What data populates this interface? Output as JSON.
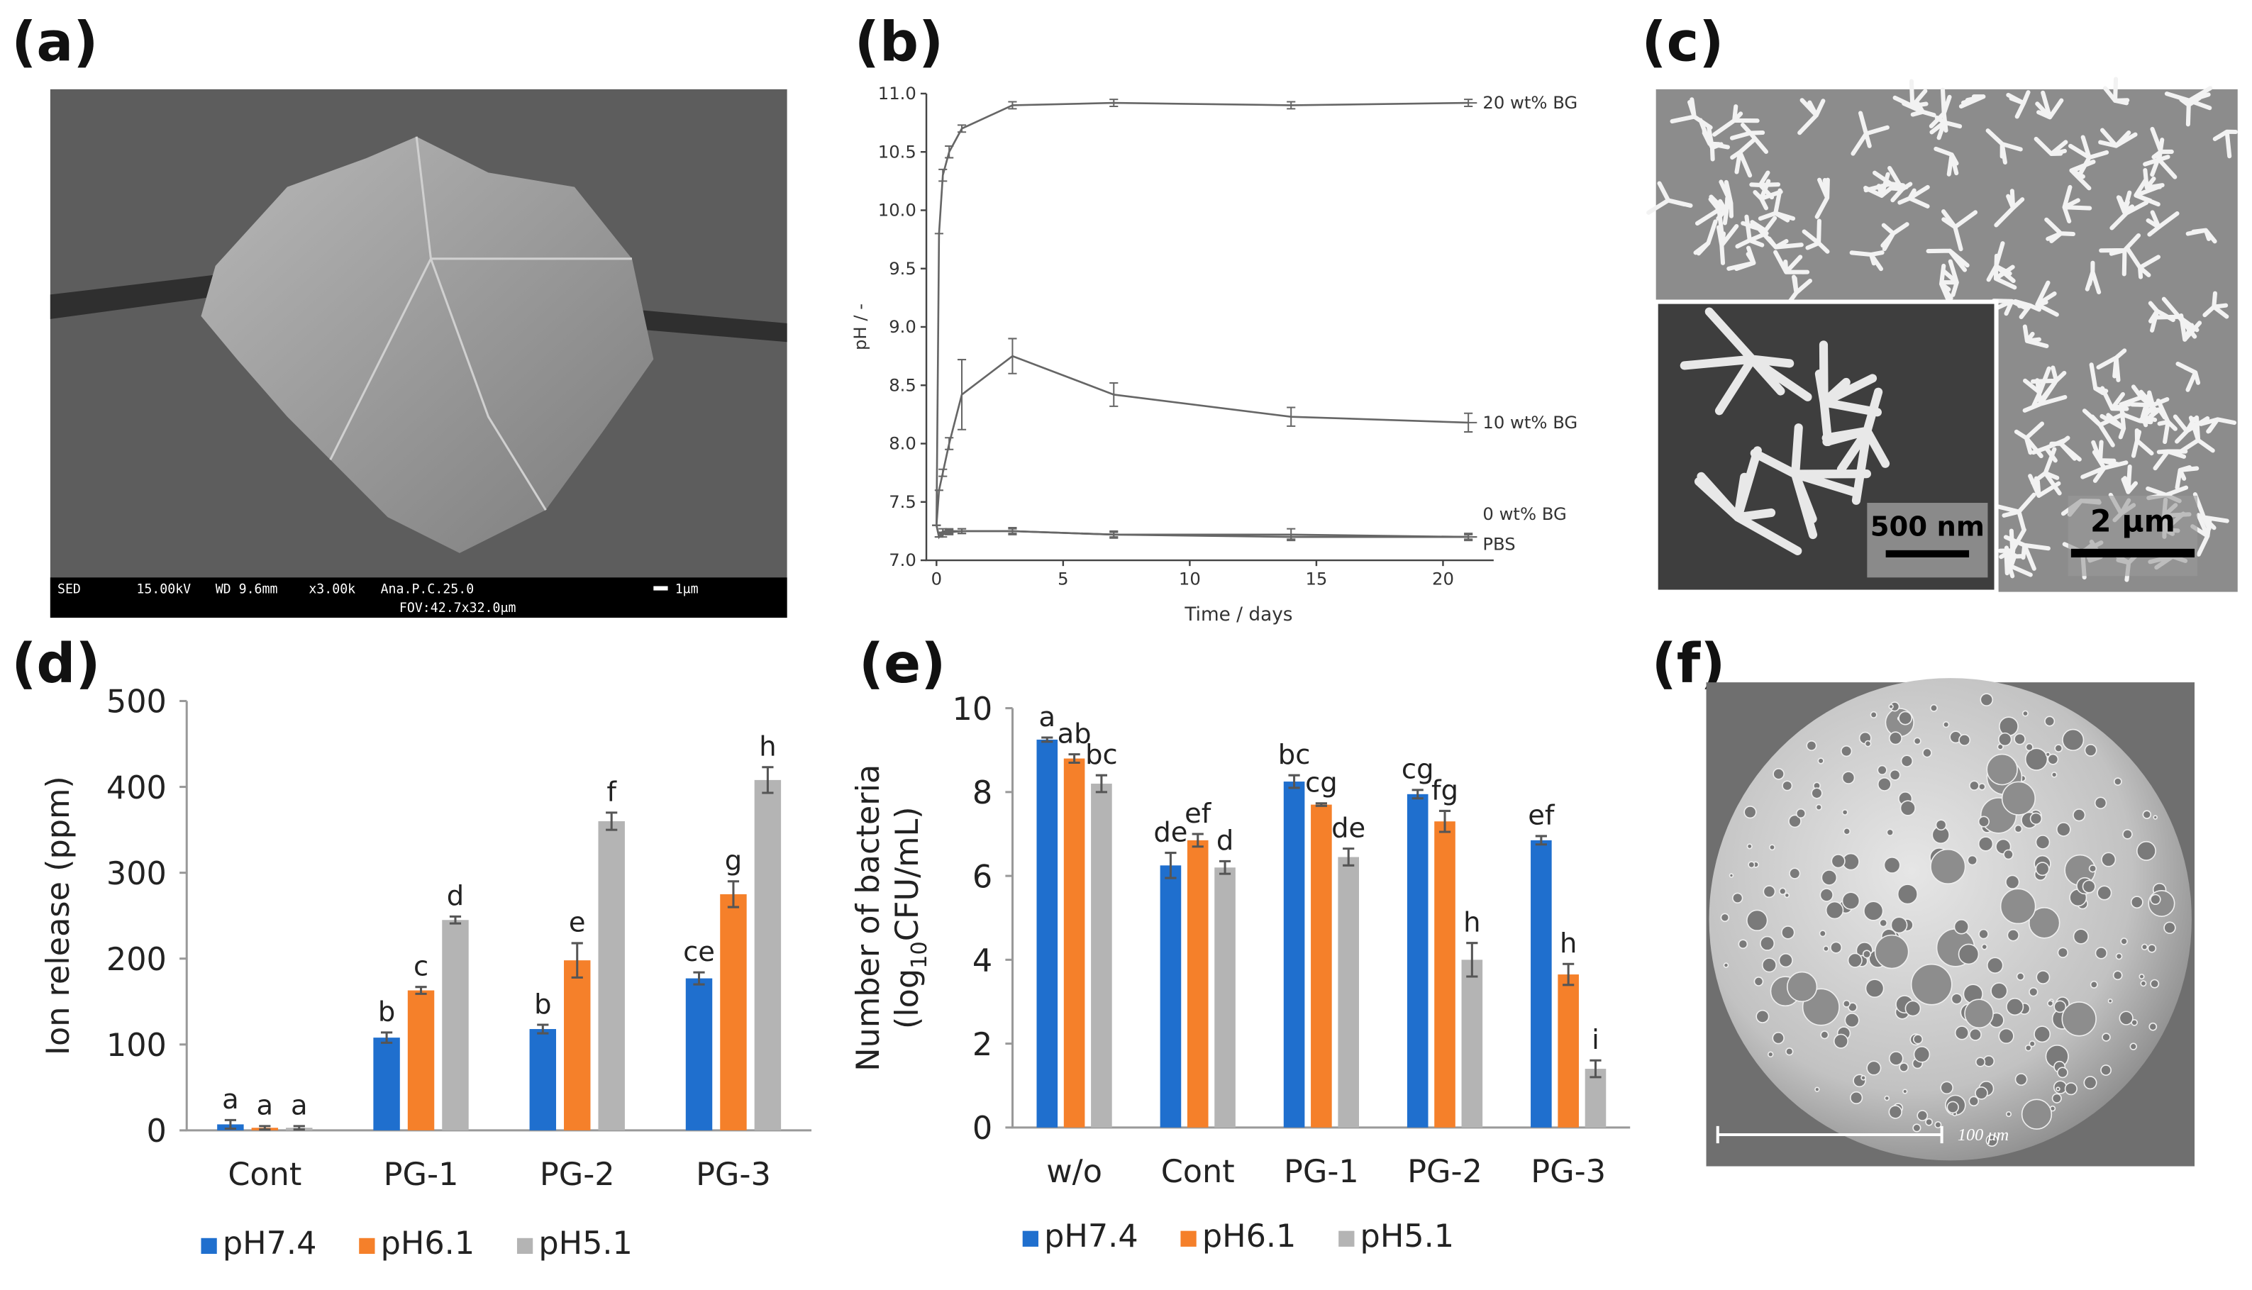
{
  "images": [
    {
      "panel_label": "(a)",
      "info_bar": [
        "SED",
        "15.00kV",
        "WD 9.6mm",
        "x3.00k",
        "Ana.P.C.25.0",
        "FOV:42.7x32.0μm"
      ],
      "scale_bar": "1μm"
    },
    {
      "panel_label": "(c)",
      "inset_scale_bar": "500 nm",
      "scale_bar": "2 μm"
    },
    {
      "panel_label": "(f)",
      "scale_bar": "100 μm"
    }
  ],
  "chart_data": [
    {
      "type": "line",
      "panel_label": "(b)",
      "x_label": "Time / days",
      "y_label": "pH / -",
      "x": [
        0,
        0.1,
        0.25,
        0.5,
        1,
        3,
        7,
        14,
        21
      ],
      "xlim": [
        -0.4,
        22
      ],
      "xticks": [
        0,
        5,
        10,
        15,
        20
      ],
      "ylim": [
        7.0,
        11.0
      ],
      "yticks": [
        {
          "value": 7.0,
          "label": "7.0"
        },
        {
          "value": 7.5,
          "label": "7.5"
        },
        {
          "value": 8.0,
          "label": "8.0"
        },
        {
          "value": 8.5,
          "label": "8.5"
        },
        {
          "value": 9.0,
          "label": "9.0"
        },
        {
          "value": 9.5,
          "label": "9.5"
        },
        {
          "value": 10.0,
          "label": "10.0"
        },
        {
          "value": 10.5,
          "label": "10.5"
        },
        {
          "value": 11.0,
          "label": "11.0"
        }
      ],
      "series": [
        {
          "name": "20 wt% BG",
          "color": "#666666",
          "values": [
            7.3,
            9.8,
            10.3,
            10.5,
            10.7,
            10.9,
            10.92,
            10.9,
            10.92
          ],
          "errors": [
            0,
            0,
            0.05,
            0.05,
            0.03,
            0.03,
            0.03,
            0.03,
            0.03
          ]
        },
        {
          "name": "10 wt% BG",
          "color": "#666666",
          "values": [
            7.3,
            7.6,
            7.75,
            8.0,
            8.42,
            8.75,
            8.42,
            8.23,
            8.18
          ],
          "errors": [
            0,
            0,
            0.03,
            0.05,
            0.3,
            0.15,
            0.1,
            0.08,
            0.08
          ]
        },
        {
          "name": "0 wt% BG",
          "color": "#666666",
          "values": [
            7.3,
            7.2,
            7.25,
            7.25,
            7.25,
            7.25,
            7.22,
            7.2,
            7.2
          ],
          "errors": [
            0,
            0,
            0.02,
            0.02,
            0.02,
            0.02,
            0.02,
            0.02,
            0.02
          ]
        },
        {
          "name": "PBS",
          "color": "#666666",
          "values": [
            7.3,
            7.2,
            7.22,
            7.24,
            7.25,
            7.25,
            7.22,
            7.22,
            7.2
          ],
          "errors": [
            0,
            0,
            0.02,
            0.02,
            0.02,
            0.03,
            0.03,
            0.05,
            0.03
          ]
        }
      ]
    },
    {
      "type": "bar",
      "panel_label": "(d)",
      "y_label": "Ion release (ppm)",
      "categories": [
        "Cont",
        "PG-1",
        "PG-2",
        "PG-3"
      ],
      "ylim": [
        0,
        500
      ],
      "yticks": [
        0,
        100,
        200,
        300,
        400,
        500
      ],
      "series": [
        {
          "name": "pH7.4",
          "color": "#1f6fce",
          "values": [
            7,
            108,
            118,
            177
          ],
          "errors": [
            5,
            6,
            5,
            7
          ],
          "letters": [
            "a",
            "b",
            "b",
            "ce"
          ]
        },
        {
          "name": "pH6.1",
          "color": "#f5802a",
          "values": [
            3,
            163,
            198,
            275
          ],
          "errors": [
            2,
            4,
            20,
            15
          ],
          "letters": [
            "a",
            "c",
            "e",
            "g"
          ]
        },
        {
          "name": "pH5.1",
          "color": "#b4b4b4",
          "values": [
            3,
            245,
            360,
            408
          ],
          "errors": [
            2,
            4,
            10,
            15
          ],
          "letters": [
            "a",
            "d",
            "f",
            "h"
          ]
        }
      ]
    },
    {
      "type": "bar",
      "panel_label": "(e)",
      "y_label": "Number of bacteria",
      "y_label_2": {
        "before": "(log",
        "sub": "10",
        "after": "CFU/mL)"
      },
      "categories": [
        "w/o",
        "Cont",
        "PG-1",
        "PG-2",
        "PG-3"
      ],
      "ylim": [
        0,
        10
      ],
      "yticks": [
        0,
        2,
        4,
        6,
        8,
        10
      ],
      "series": [
        {
          "name": "pH7.4",
          "color": "#1f6fce",
          "values": [
            9.25,
            6.25,
            8.25,
            7.95,
            6.85
          ],
          "errors": [
            0.05,
            0.3,
            0.15,
            0.1,
            0.1
          ],
          "letters": [
            "a",
            "de",
            "bc",
            "cg",
            "ef"
          ]
        },
        {
          "name": "pH6.1",
          "color": "#f5802a",
          "values": [
            8.8,
            6.85,
            7.7,
            7.3,
            3.65
          ],
          "errors": [
            0.1,
            0.15,
            0.03,
            0.25,
            0.25
          ],
          "letters": [
            "ab",
            "ef",
            "cg",
            "fg",
            "h"
          ]
        },
        {
          "name": "pH5.1",
          "color": "#b4b4b4",
          "values": [
            8.2,
            6.2,
            6.45,
            4.0,
            1.4
          ],
          "errors": [
            0.2,
            0.15,
            0.2,
            0.4,
            0.2
          ],
          "letters": [
            "bc",
            "d",
            "de",
            "h",
            "i"
          ]
        }
      ]
    }
  ]
}
